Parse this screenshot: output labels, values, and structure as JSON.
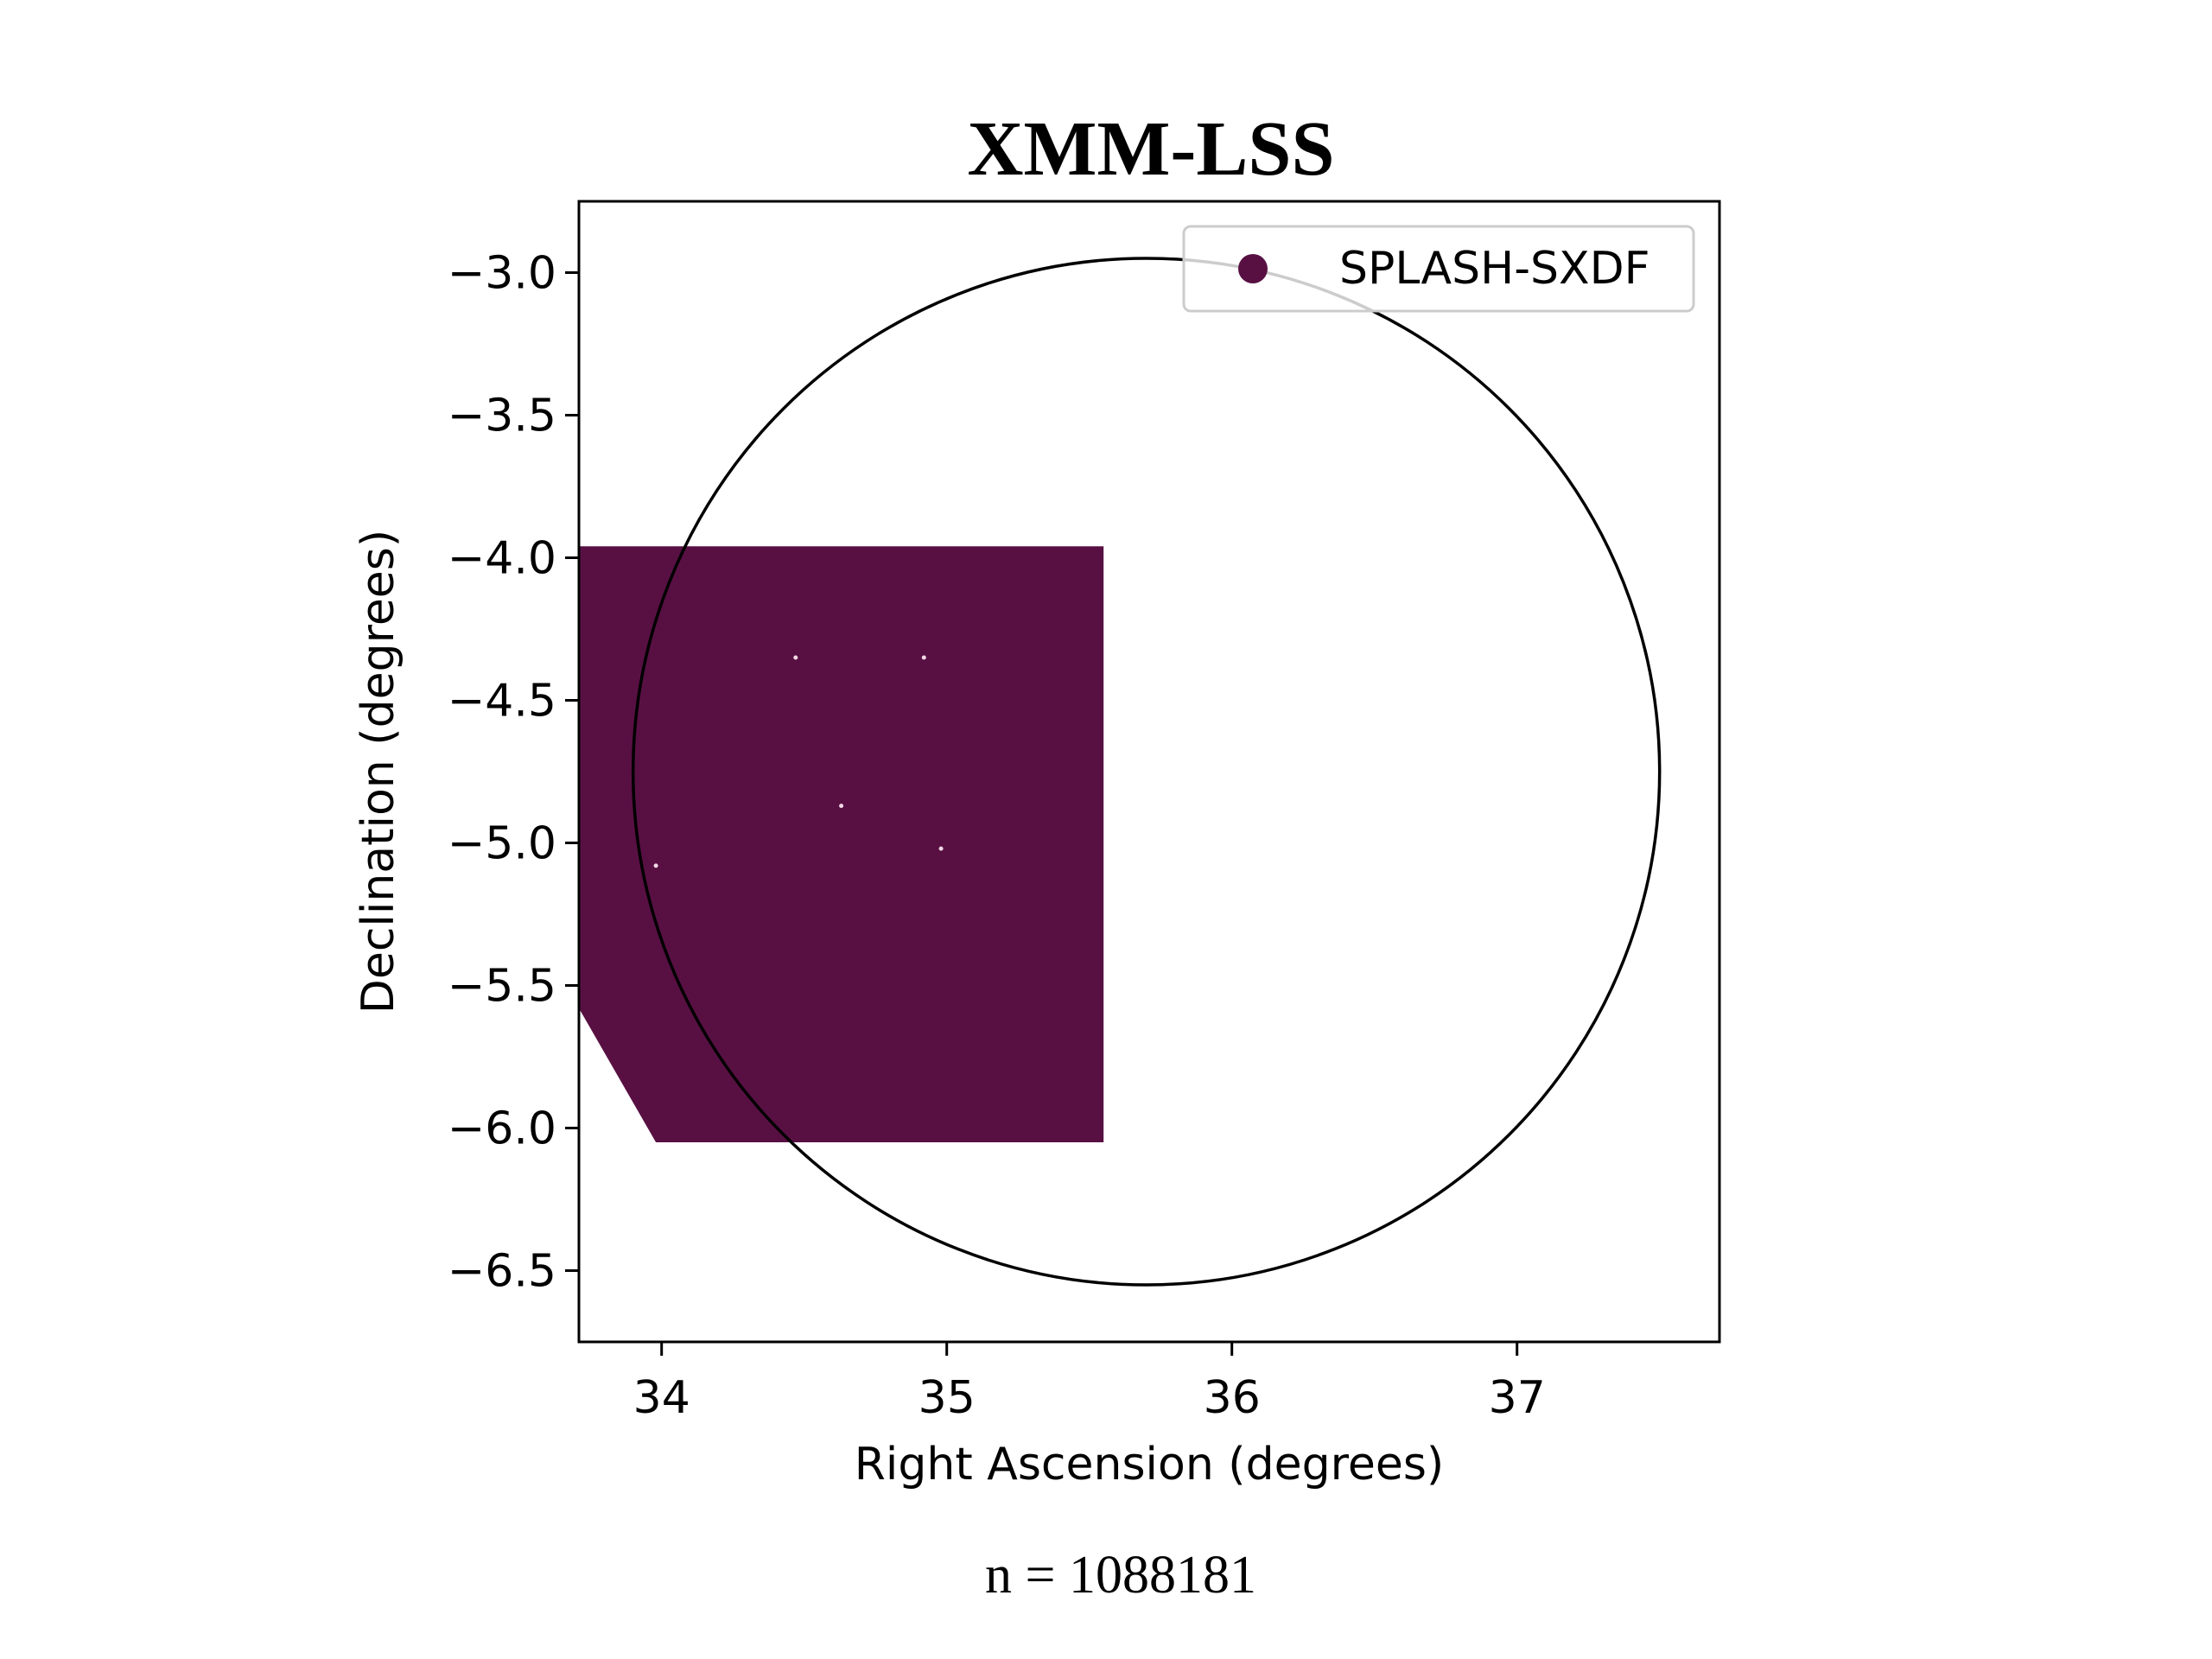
{
  "chart_data": {
    "type": "scatter",
    "title": "XMM-LSS",
    "xlabel": "Right Ascension (degrees)",
    "ylabel": "Declination (degrees)",
    "xlim": [
      33.71,
      37.71
    ],
    "ylim": [
      -6.75,
      -2.75
    ],
    "xticks": [
      34,
      35,
      36,
      37
    ],
    "yticks": [
      -3.0,
      -3.5,
      -4.0,
      -4.5,
      -5.0,
      -5.5,
      -6.0,
      -6.5
    ],
    "xtick_labels": [
      "34",
      "35",
      "36",
      "37"
    ],
    "ytick_labels": [
      "−3.0",
      "−3.5",
      "−4.0",
      "−4.5",
      "−5.0",
      "−5.5",
      "−6.0",
      "−6.5"
    ],
    "grid": false,
    "legend_position": "top-right",
    "circle": {
      "center_ra": 35.7,
      "center_dec": -4.75,
      "radius_deg": 1.8,
      "color": "#000000"
    },
    "series": [
      {
        "name": "SPLASH-SXDF",
        "color": "#581043",
        "region_outline": [
          [
            33.71,
            -3.96
          ],
          [
            35.55,
            -3.96
          ],
          [
            35.55,
            -6.05
          ],
          [
            33.98,
            -6.05
          ],
          [
            33.71,
            -5.58
          ]
        ],
        "holes": [
          [
            34.47,
            -4.35
          ],
          [
            34.63,
            -4.87
          ],
          [
            34.92,
            -4.35
          ],
          [
            34.98,
            -5.02
          ],
          [
            33.98,
            -5.08
          ]
        ]
      }
    ],
    "annotation": "n = 1088181"
  },
  "colors": {
    "background": "#ffffff",
    "axes": "#000000"
  }
}
